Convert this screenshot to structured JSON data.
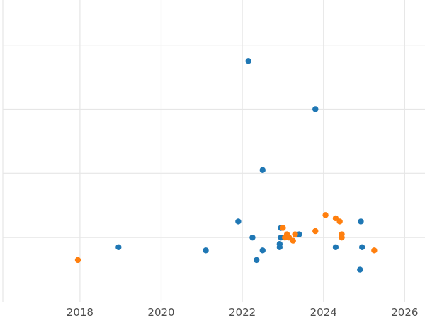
{
  "chart_data": {
    "type": "scatter",
    "title": "",
    "xlabel": "",
    "ylabel": "",
    "grid": true,
    "legend": "none",
    "x_ticks": [
      2018,
      2020,
      2022,
      2024,
      2026
    ],
    "xlim": [
      2016.1,
      2026.5
    ],
    "ylim": [
      0,
      9.4
    ],
    "y_gridlines": [
      2,
      4,
      6,
      8
    ],
    "series": [
      {
        "color": "#1f77b4",
        "points": [
          [
            2018.95,
            1.7
          ],
          [
            2021.1,
            1.6
          ],
          [
            2021.9,
            2.5
          ],
          [
            2022.15,
            7.5
          ],
          [
            2022.25,
            2.0
          ],
          [
            2022.35,
            1.3
          ],
          [
            2022.5,
            1.6
          ],
          [
            2022.5,
            4.1
          ],
          [
            2022.92,
            1.7
          ],
          [
            2022.92,
            1.8
          ],
          [
            2022.95,
            2.0
          ],
          [
            2022.95,
            2.3
          ],
          [
            2023.4,
            2.1
          ],
          [
            2023.8,
            6.0
          ],
          [
            2024.3,
            1.7
          ],
          [
            2024.9,
            1.0
          ],
          [
            2024.92,
            2.5
          ],
          [
            2024.95,
            1.7
          ]
        ]
      },
      {
        "color": "#ff7f0e",
        "points": [
          [
            2017.95,
            1.3
          ],
          [
            2023.0,
            2.3
          ],
          [
            2023.05,
            2.0
          ],
          [
            2023.1,
            2.1
          ],
          [
            2023.15,
            2.0
          ],
          [
            2023.25,
            1.9
          ],
          [
            2023.3,
            2.1
          ],
          [
            2023.8,
            2.2
          ],
          [
            2024.05,
            2.7
          ],
          [
            2024.3,
            2.6
          ],
          [
            2024.4,
            2.5
          ],
          [
            2024.45,
            2.0
          ],
          [
            2024.45,
            2.1
          ],
          [
            2025.25,
            1.6
          ]
        ]
      }
    ]
  }
}
